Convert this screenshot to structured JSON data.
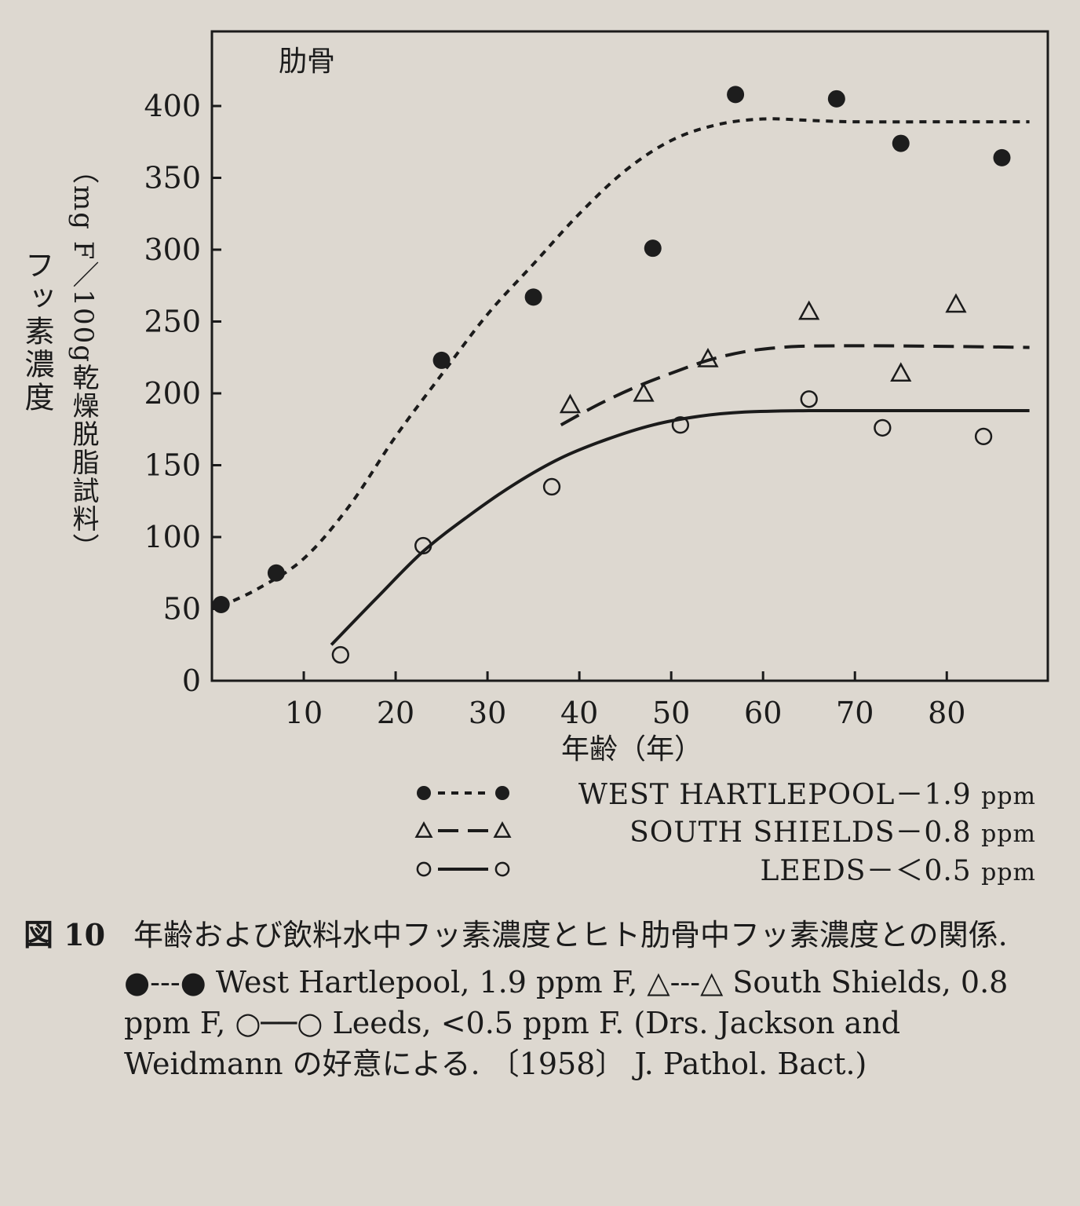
{
  "chart_data": {
    "type": "scatter",
    "panel_label": "肋骨",
    "xlabel": "年齢（年）",
    "ylabel": "フッ素濃度",
    "ylabel_unit": "（mg F／100g乾燥脱脂試料）",
    "xlim": [
      0,
      91
    ],
    "ylim": [
      0,
      400
    ],
    "x_ticks": [
      10,
      20,
      30,
      40,
      50,
      60,
      70,
      80
    ],
    "y_ticks": [
      0,
      50,
      100,
      150,
      200,
      250,
      300,
      350,
      400
    ],
    "series": [
      {
        "name": "WEST HARTLEPOOL",
        "concentration": "1.9 ppm",
        "marker": "filled-circle",
        "line_style": "dotted",
        "points": [
          [
            1,
            53
          ],
          [
            7,
            75
          ],
          [
            25,
            223
          ],
          [
            35,
            267
          ],
          [
            48,
            301
          ],
          [
            57,
            408
          ],
          [
            68,
            405
          ],
          [
            75,
            374
          ],
          [
            86,
            364
          ]
        ],
        "fit_curve": [
          [
            1,
            52
          ],
          [
            5,
            64
          ],
          [
            10,
            85
          ],
          [
            15,
            122
          ],
          [
            20,
            170
          ],
          [
            25,
            213
          ],
          [
            30,
            255
          ],
          [
            35,
            290
          ],
          [
            40,
            325
          ],
          [
            45,
            355
          ],
          [
            50,
            376
          ],
          [
            55,
            387
          ],
          [
            60,
            391
          ],
          [
            65,
            390
          ],
          [
            70,
            389
          ],
          [
            80,
            389
          ],
          [
            89,
            389
          ]
        ]
      },
      {
        "name": "SOUTH SHIELDS",
        "concentration": "0.8 ppm",
        "marker": "open-triangle",
        "line_style": "dashed",
        "points": [
          [
            39,
            192
          ],
          [
            47,
            200
          ],
          [
            54,
            224
          ],
          [
            65,
            257
          ],
          [
            75,
            214
          ],
          [
            81,
            262
          ]
        ],
        "fit_curve": [
          [
            38,
            178
          ],
          [
            42,
            192
          ],
          [
            46,
            204
          ],
          [
            50,
            214
          ],
          [
            54,
            223
          ],
          [
            58,
            229
          ],
          [
            62,
            232
          ],
          [
            66,
            233
          ],
          [
            75,
            233
          ],
          [
            89,
            232
          ]
        ]
      },
      {
        "name": "LEEDS",
        "concentration": "<0.5 ppm",
        "marker": "open-circle",
        "line_style": "solid",
        "points": [
          [
            14,
            18
          ],
          [
            23,
            94
          ],
          [
            37,
            135
          ],
          [
            51,
            178
          ],
          [
            65,
            196
          ],
          [
            73,
            176
          ],
          [
            84,
            170
          ]
        ],
        "fit_curve": [
          [
            13,
            25
          ],
          [
            18,
            58
          ],
          [
            23,
            90
          ],
          [
            28,
            115
          ],
          [
            33,
            137
          ],
          [
            38,
            155
          ],
          [
            43,
            168
          ],
          [
            48,
            178
          ],
          [
            53,
            184
          ],
          [
            58,
            187
          ],
          [
            65,
            188
          ],
          [
            75,
            188
          ],
          [
            89,
            188
          ]
        ]
      }
    ],
    "legend": {
      "placement": "bottom-right",
      "entries": [
        {
          "marker_text": "●---●",
          "label": "WEST HARTLEPOOL－1.9",
          "unit": "ppm"
        },
        {
          "marker_text": "△－－△",
          "label": "SOUTH SHIELDS－0.8",
          "unit": "ppm"
        },
        {
          "marker_text": "○──○",
          "label": "LEEDS－＜0.5",
          "unit": "ppm"
        }
      ]
    }
  },
  "caption": {
    "figure_number": "図 10",
    "title": "年齢および飲料水中フッ素濃度とヒト肋骨中フッ素濃度との関係.",
    "body": "●---● West Hartlepool, 1.9 ppm F, △---△ South Shields, 0.8 ppm F, ○──○ Leeds, <0.5 ppm F. (Drs. Jackson and Weidmann の好意による. 〔1958〕 J. Pathol. Bact.)"
  }
}
